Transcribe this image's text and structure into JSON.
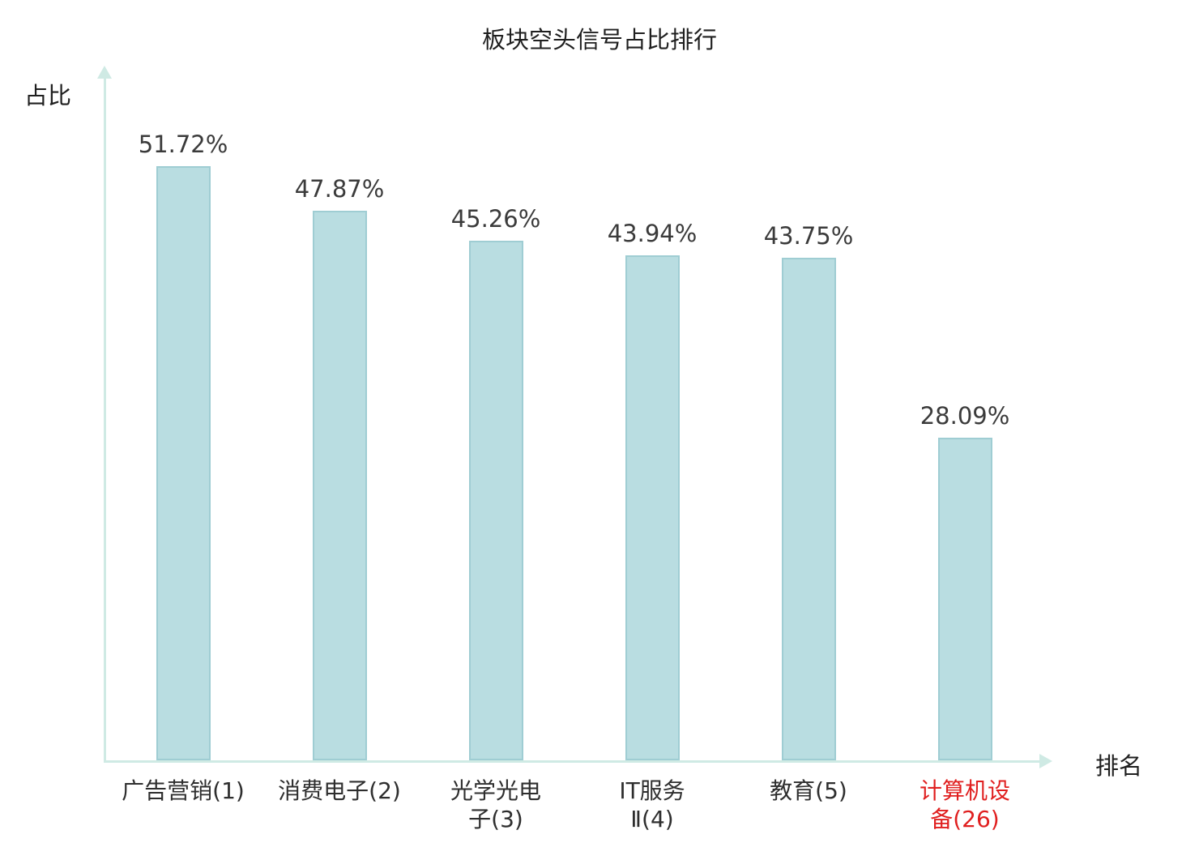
{
  "chart_data": {
    "type": "bar",
    "title": "板块空头信号占比排行",
    "xlabel": "排名",
    "ylabel": "占比",
    "categories": [
      "广告营销(1)",
      "消费电子(2)",
      "光学光电子(3)",
      "IT服务Ⅱ(4)",
      "教育(5)",
      "计算机设备(26)"
    ],
    "category_display": [
      "广告营销(1)",
      "消费电子(2)",
      "光学光电\n子(3)",
      "IT服务\nⅡ(4)",
      "教育(5)",
      "计算机设\n备(26)"
    ],
    "values": [
      51.72,
      47.87,
      45.26,
      43.94,
      43.75,
      28.09
    ],
    "value_labels": [
      "51.72%",
      "47.87%",
      "45.26%",
      "43.94%",
      "43.75%",
      "28.09%"
    ],
    "highlight_index": 5,
    "highlight_color": "#e01f1f",
    "bar_color": "#b9dde1",
    "bar_border_color": "#9fcdd3",
    "axis_color": "#cfeae4",
    "label_color": "#2e2e2e",
    "value_label_color": "#3b3b3b",
    "ylim": [
      0,
      60
    ],
    "grid": false,
    "legend": null
  }
}
